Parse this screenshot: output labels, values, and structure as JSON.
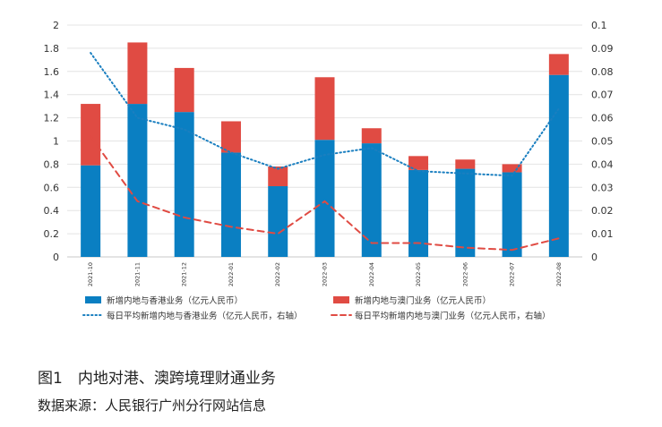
{
  "caption": "图1　内地对港、澳跨境理财通业务",
  "source": "数据来源：人民银行广州分行网站信息",
  "chart_data": {
    "type": "bar",
    "stacked": true,
    "categories": [
      "2021-10",
      "2021-11",
      "2021-12",
      "2022-01",
      "2022-02",
      "2022-03",
      "2022-04",
      "2022-05",
      "2022-06",
      "2022-07",
      "2022-08"
    ],
    "y_left": {
      "min": 0,
      "max": 2,
      "step": 0.2,
      "ticks": [
        "0",
        "0.2",
        "0.4",
        "0.6",
        "0.8",
        "1",
        "1.2",
        "1.4",
        "1.6",
        "1.8",
        "2"
      ]
    },
    "y_right": {
      "min": 0,
      "max": 0.1,
      "step": 0.01,
      "ticks": [
        "0",
        "0.01",
        "0.02",
        "0.03",
        "0.04",
        "0.05",
        "0.06",
        "0.07",
        "0.08",
        "0.09",
        "0.1"
      ]
    },
    "grid": true,
    "legend_position": "bottom",
    "series": [
      {
        "name": "新增内地与香港业务（亿元人民币）",
        "kind": "bar",
        "axis": "left",
        "color": "#0a7fc2",
        "values": [
          0.79,
          1.32,
          1.25,
          0.9,
          0.61,
          1.01,
          0.98,
          0.75,
          0.76,
          0.73,
          1.57
        ]
      },
      {
        "name": "新增内地与澳门业务（亿元人民币）",
        "kind": "bar",
        "axis": "left",
        "color": "#e04b43",
        "values": [
          0.53,
          0.53,
          0.38,
          0.27,
          0.17,
          0.54,
          0.13,
          0.12,
          0.08,
          0.07,
          0.18
        ]
      },
      {
        "name": "每日平均新增内地与香港业务（亿元人民币，右轴）",
        "kind": "line",
        "style": "dotted",
        "axis": "right",
        "color": "#1a7fc0",
        "values": [
          0.088,
          0.06,
          0.055,
          0.045,
          0.038,
          0.044,
          0.047,
          0.037,
          0.036,
          0.035,
          0.064
        ]
      },
      {
        "name": "每日平均新增内地与澳门业务（亿元人民币，右轴）",
        "kind": "line",
        "style": "dashed",
        "axis": "right",
        "color": "#e04b43",
        "values": [
          0.052,
          0.024,
          0.017,
          0.013,
          0.01,
          0.024,
          0.006,
          0.006,
          0.004,
          0.003,
          0.008
        ]
      }
    ]
  }
}
